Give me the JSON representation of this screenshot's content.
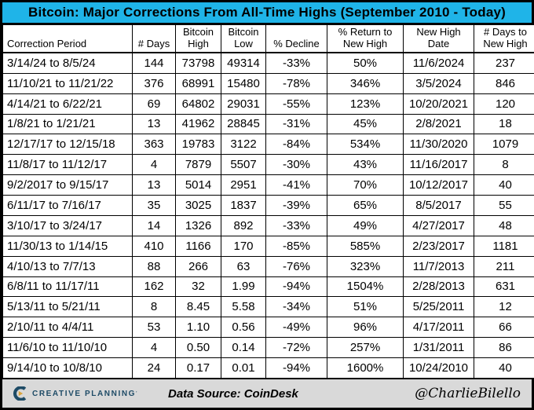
{
  "chart_data": {
    "type": "table",
    "title": "Bitcoin: Major Corrections From All-Time Highs (September 2010 - Today)",
    "columns": [
      "Correction Period",
      "# Days",
      "Bitcoin High",
      "Bitcoin Low",
      "% Decline",
      "% Return to New High",
      "New High Date",
      "# Days to New High"
    ],
    "rows": [
      [
        "3/14/24 to 8/5/24",
        "144",
        "73798",
        "49314",
        "-33%",
        "50%",
        "11/6/2024",
        "237"
      ],
      [
        "11/10/21 to 11/21/22",
        "376",
        "68991",
        "15480",
        "-78%",
        "346%",
        "3/5/2024",
        "846"
      ],
      [
        "4/14/21 to 6/22/21",
        "69",
        "64802",
        "29031",
        "-55%",
        "123%",
        "10/20/2021",
        "120"
      ],
      [
        "1/8/21 to 1/21/21",
        "13",
        "41962",
        "28845",
        "-31%",
        "45%",
        "2/8/2021",
        "18"
      ],
      [
        "12/17/17 to 12/15/18",
        "363",
        "19783",
        "3122",
        "-84%",
        "534%",
        "11/30/2020",
        "1079"
      ],
      [
        "11/8/17 to 11/12/17",
        "4",
        "7879",
        "5507",
        "-30%",
        "43%",
        "11/16/2017",
        "8"
      ],
      [
        "9/2/2017 to 9/15/17",
        "13",
        "5014",
        "2951",
        "-41%",
        "70%",
        "10/12/2017",
        "40"
      ],
      [
        "6/11/17 to 7/16/17",
        "35",
        "3025",
        "1837",
        "-39%",
        "65%",
        "8/5/2017",
        "55"
      ],
      [
        "3/10/17 to 3/24/17",
        "14",
        "1326",
        "892",
        "-33%",
        "49%",
        "4/27/2017",
        "48"
      ],
      [
        "11/30/13 to 1/14/15",
        "410",
        "1166",
        "170",
        "-85%",
        "585%",
        "2/23/2017",
        "1181"
      ],
      [
        "4/10/13 to 7/7/13",
        "88",
        "266",
        "63",
        "-76%",
        "323%",
        "11/7/2013",
        "211"
      ],
      [
        "6/8/11 to 11/17/11",
        "162",
        "32",
        "1.99",
        "-94%",
        "1504%",
        "2/28/2013",
        "631"
      ],
      [
        "5/13/11 to 5/21/11",
        "8",
        "8.45",
        "5.58",
        "-34%",
        "51%",
        "5/25/2011",
        "12"
      ],
      [
        "2/10/11 to 4/4/11",
        "53",
        "1.10",
        "0.56",
        "-49%",
        "96%",
        "4/17/2011",
        "66"
      ],
      [
        "11/6/10 to 11/10/10",
        "4",
        "0.50",
        "0.14",
        "-72%",
        "257%",
        "1/31/2011",
        "86"
      ],
      [
        "9/14/10 to 10/8/10",
        "24",
        "0.17",
        "0.01",
        "-94%",
        "1600%",
        "10/24/2010",
        "40"
      ]
    ],
    "layout": {
      "title_bg_color": "#1fb4e8",
      "footer_bg_color": "#d9d9d9",
      "grid": "all-borders-black"
    }
  },
  "footer": {
    "logo_text": "CREATIVE PLANNING",
    "logo_colors": {
      "navy": "#1e4b66",
      "gold": "#d9a33c"
    },
    "data_source": "Data Source: CoinDesk",
    "handle": "@CharlieBilello"
  }
}
